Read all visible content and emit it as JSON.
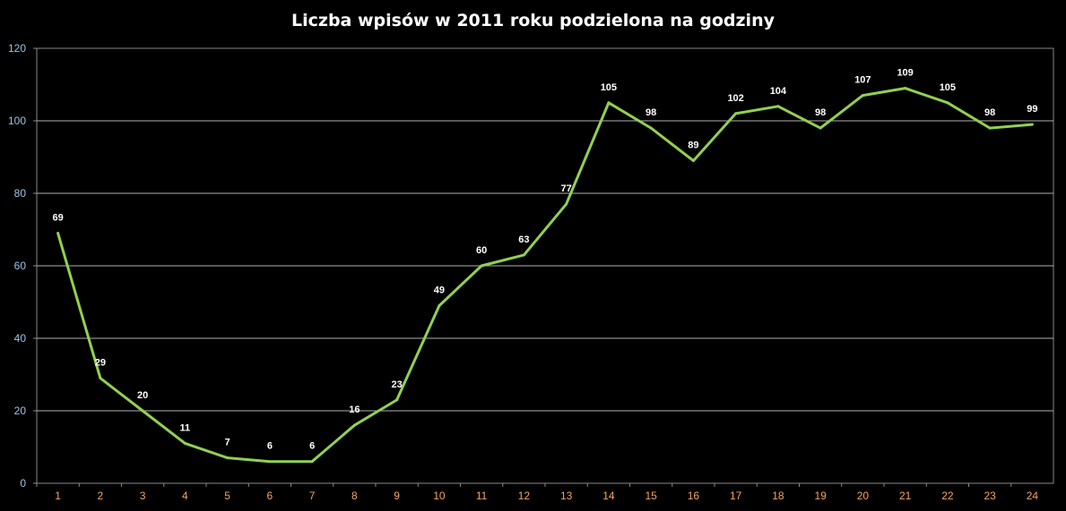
{
  "chart_data": {
    "type": "line",
    "title": "Liczba wpisów w 2011 roku podzielona na godziny",
    "xlabel": "",
    "ylabel": "",
    "categories": [
      "1",
      "2",
      "3",
      "4",
      "5",
      "6",
      "7",
      "8",
      "9",
      "10",
      "11",
      "12",
      "13",
      "14",
      "15",
      "16",
      "17",
      "18",
      "19",
      "20",
      "21",
      "22",
      "23",
      "24"
    ],
    "values": [
      69,
      29,
      20,
      11,
      7,
      6,
      6,
      16,
      23,
      49,
      60,
      63,
      77,
      105,
      98,
      89,
      102,
      104,
      98,
      107,
      109,
      105,
      98,
      99
    ],
    "ylim": [
      0,
      120
    ],
    "yticks": [
      "0",
      "20",
      "40",
      "60",
      "80",
      "100",
      "120"
    ],
    "grid": true,
    "legend": "none",
    "line_color": "#92d050",
    "background": "#000000"
  }
}
